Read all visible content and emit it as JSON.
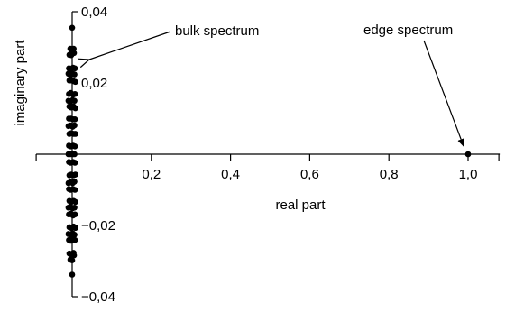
{
  "chart_data": {
    "type": "scatter",
    "title": "",
    "xlabel": "real part",
    "ylabel": "imaginary part",
    "xlim": [
      -0.1,
      1.08
    ],
    "ylim": [
      -0.04,
      0.04
    ],
    "x_ticks": [
      0.2,
      0.4,
      0.6,
      0.8,
      1.0
    ],
    "x_tick_labels": [
      "0,2",
      "0,4",
      "0,6",
      "0,8",
      "1,0"
    ],
    "y_ticks": [
      0.04,
      0.02,
      -0.02,
      -0.04
    ],
    "y_tick_labels": [
      "0,04",
      "0,02",
      "−0,02",
      "−0,04"
    ],
    "grid": false,
    "legend": "none",
    "annotations": [
      {
        "text": "bulk spectrum",
        "target": [
          0.0,
          0.028
        ]
      },
      {
        "text": "edge spectrum",
        "target": [
          1.0,
          0.0
        ]
      }
    ],
    "series": [
      {
        "points": [
          [
            0.0,
            0.0355
          ],
          [
            -0.0046,
            0.0296
          ],
          [
            0.0037,
            0.0296
          ],
          [
            -0.007,
            0.0279
          ],
          [
            -0.0023,
            0.0278
          ],
          [
            0.0,
            0.0287
          ],
          [
            0.0046,
            0.0284
          ],
          [
            -0.0081,
            0.0241
          ],
          [
            -0.0035,
            0.0239
          ],
          [
            0.0023,
            0.0243
          ],
          [
            0.007,
            0.0241
          ],
          [
            -0.0093,
            0.0226
          ],
          [
            -0.0046,
            0.0222
          ],
          [
            0.0012,
            0.0226
          ],
          [
            0.0058,
            0.0224
          ],
          [
            -0.007,
            0.0207
          ],
          [
            -0.0023,
            0.0207
          ],
          [
            0.0035,
            0.0205
          ],
          [
            0.0081,
            0.0203
          ],
          [
            -0.0081,
            0.0169
          ],
          [
            -0.0035,
            0.0172
          ],
          [
            0.0023,
            0.0167
          ],
          [
            0.007,
            0.0169
          ],
          [
            -0.0093,
            0.015
          ],
          [
            -0.0046,
            0.0147
          ],
          [
            0.0012,
            0.0152
          ],
          [
            0.0058,
            0.015
          ],
          [
            -0.007,
            0.0134
          ],
          [
            -0.0023,
            0.0131
          ],
          [
            0.0035,
            0.0134
          ],
          [
            0.0081,
            0.0129
          ],
          [
            -0.0081,
            0.01
          ],
          [
            -0.0035,
            0.01
          ],
          [
            0.0023,
            0.0098
          ],
          [
            0.007,
            0.0098
          ],
          [
            -0.0093,
            0.0079
          ],
          [
            -0.0046,
            0.0081
          ],
          [
            0.0012,
            0.0077
          ],
          [
            0.0058,
            0.0081
          ],
          [
            -0.007,
            0.0057
          ],
          [
            -0.0023,
            0.0059
          ],
          [
            0.0035,
            0.0057
          ],
          [
            0.0081,
            0.0057
          ],
          [
            -0.0081,
            0.0024
          ],
          [
            -0.0035,
            0.0022
          ],
          [
            0.0023,
            0.0024
          ],
          [
            0.007,
            0.0022
          ],
          [
            -0.0093,
            0.0
          ],
          [
            -0.0046,
            0.0
          ],
          [
            0.0012,
            0.0
          ],
          [
            0.0058,
            0.0
          ],
          [
            -0.0081,
            -0.0022
          ],
          [
            -0.0035,
            -0.0024
          ],
          [
            0.0023,
            -0.0022
          ],
          [
            0.007,
            -0.0024
          ],
          [
            -0.007,
            -0.0059
          ],
          [
            -0.0023,
            -0.0057
          ],
          [
            0.0035,
            -0.0059
          ],
          [
            0.0081,
            -0.0057
          ],
          [
            -0.0093,
            -0.0081
          ],
          [
            -0.0046,
            -0.0079
          ],
          [
            0.0012,
            -0.0081
          ],
          [
            0.0058,
            -0.0077
          ],
          [
            -0.0081,
            -0.0098
          ],
          [
            -0.0035,
            -0.01
          ],
          [
            0.0023,
            -0.0098
          ],
          [
            0.007,
            -0.01
          ],
          [
            -0.007,
            -0.0131
          ],
          [
            -0.0023,
            -0.0134
          ],
          [
            0.0035,
            -0.0131
          ],
          [
            0.0081,
            -0.0134
          ],
          [
            -0.0093,
            -0.015
          ],
          [
            -0.0046,
            -0.0147
          ],
          [
            0.0012,
            -0.0152
          ],
          [
            0.0058,
            -0.015
          ],
          [
            -0.0081,
            -0.0169
          ],
          [
            -0.0035,
            -0.0167
          ],
          [
            0.0023,
            -0.0172
          ],
          [
            0.007,
            -0.0169
          ],
          [
            -0.007,
            -0.0205
          ],
          [
            -0.0023,
            -0.0207
          ],
          [
            0.0035,
            -0.0203
          ],
          [
            0.0081,
            -0.0207
          ],
          [
            -0.0093,
            -0.0224
          ],
          [
            -0.0046,
            -0.0226
          ],
          [
            0.0012,
            -0.0222
          ],
          [
            0.0058,
            -0.0226
          ],
          [
            -0.0081,
            -0.0241
          ],
          [
            -0.0035,
            -0.0243
          ],
          [
            0.0023,
            -0.0239
          ],
          [
            0.007,
            -0.0241
          ],
          [
            -0.007,
            -0.0279
          ],
          [
            -0.0023,
            -0.0281
          ],
          [
            0.0035,
            -0.0277
          ],
          [
            0.0046,
            -0.0284
          ],
          [
            -0.0046,
            -0.0296
          ],
          [
            0.0,
            -0.0298
          ],
          [
            0.0,
            -0.0338
          ],
          [
            1.0,
            0.0
          ]
        ]
      }
    ]
  }
}
